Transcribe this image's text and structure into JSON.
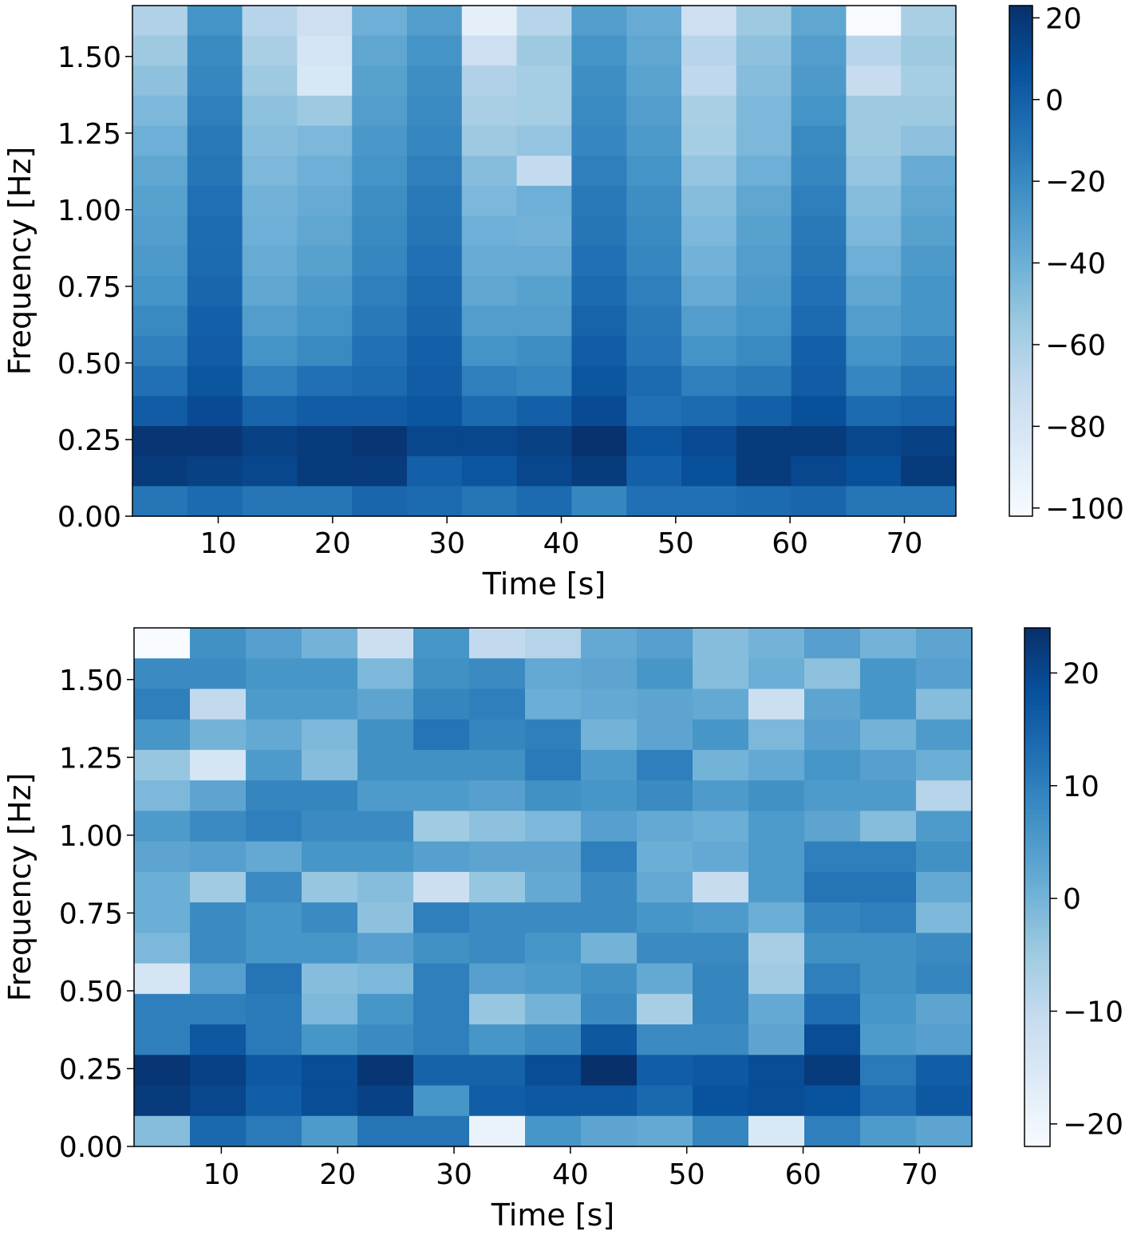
{
  "chart_data": [
    {
      "type": "heatmap",
      "xlabel": "Time [s]",
      "ylabel": "Frequency [Hz]",
      "x_ticks": [
        10,
        20,
        30,
        40,
        50,
        60,
        70
      ],
      "y_ticks": [
        0.0,
        0.25,
        0.5,
        0.75,
        1.0,
        1.25,
        1.5
      ],
      "y_tick_labels": [
        "0.00",
        "0.25",
        "0.50",
        "0.75",
        "1.00",
        "1.25",
        "1.50"
      ],
      "x_tick_labels": [
        "10",
        "20",
        "30",
        "40",
        "50",
        "60",
        "70"
      ],
      "xlim": [
        2.5,
        74.5
      ],
      "ylim": [
        0.0,
        1.666
      ],
      "x_edges": [
        2.5,
        7.3,
        12.1,
        16.9,
        21.7,
        26.5,
        31.3,
        36.1,
        40.9,
        45.7,
        50.5,
        55.3,
        60.1,
        64.9,
        69.7,
        74.5
      ],
      "y_edges": [
        0.0,
        0.098,
        0.196,
        0.294,
        0.392,
        0.49,
        0.588,
        0.686,
        0.784,
        0.882,
        0.98,
        1.078,
        1.176,
        1.274,
        1.372,
        1.47,
        1.568,
        1.666
      ],
      "colormap": "Blues",
      "colorbar": {
        "min": -102,
        "max": 23,
        "ticks": [
          20,
          0,
          -20,
          -40,
          -60,
          -80,
          -100
        ],
        "tick_labels": [
          "20",
          "0",
          "−20",
          "−40",
          "−60",
          "−80",
          "−100"
        ]
      },
      "values_rows_top_to_bottom": [
        [
          -62,
          -25,
          -65,
          -75,
          -40,
          -30,
          -90,
          -65,
          -30,
          -38,
          -75,
          -55,
          -35,
          -102,
          -60
        ],
        [
          -55,
          -20,
          -60,
          -80,
          -35,
          -25,
          -75,
          -55,
          -25,
          -35,
          -65,
          -50,
          -30,
          -65,
          -55
        ],
        [
          -50,
          -18,
          -55,
          -82,
          -32,
          -22,
          -62,
          -58,
          -22,
          -33,
          -68,
          -48,
          -28,
          -72,
          -58
        ],
        [
          -45,
          -15,
          -50,
          -55,
          -30,
          -20,
          -60,
          -58,
          -20,
          -30,
          -60,
          -45,
          -25,
          -55,
          -55
        ],
        [
          -40,
          -12,
          -48,
          -45,
          -27,
          -18,
          -55,
          -52,
          -18,
          -28,
          -58,
          -45,
          -20,
          -55,
          -50
        ],
        [
          -35,
          -10,
          -45,
          -40,
          -25,
          -15,
          -48,
          -70,
          -15,
          -25,
          -52,
          -40,
          -18,
          -52,
          -38
        ],
        [
          -32,
          -8,
          -42,
          -38,
          -22,
          -12,
          -45,
          -40,
          -12,
          -22,
          -48,
          -35,
          -15,
          -48,
          -35
        ],
        [
          -30,
          -6,
          -40,
          -35,
          -20,
          -10,
          -40,
          -42,
          -10,
          -20,
          -45,
          -32,
          -12,
          -45,
          -32
        ],
        [
          -28,
          -5,
          -38,
          -32,
          -18,
          -8,
          -38,
          -38,
          -8,
          -18,
          -42,
          -30,
          -10,
          -40,
          -28
        ],
        [
          -25,
          -3,
          -35,
          -28,
          -15,
          -5,
          -35,
          -32,
          -5,
          -15,
          -38,
          -28,
          -8,
          -35,
          -25
        ],
        [
          -20,
          0,
          -30,
          -25,
          -12,
          -3,
          -30,
          -30,
          -2,
          -12,
          -30,
          -25,
          -5,
          -30,
          -25
        ],
        [
          -15,
          2,
          -25,
          -20,
          -8,
          0,
          -25,
          -22,
          2,
          -10,
          -25,
          -20,
          0,
          -25,
          -18
        ],
        [
          -8,
          5,
          -15,
          -8,
          -5,
          2,
          -15,
          -18,
          5,
          -5,
          -15,
          -12,
          2,
          -18,
          -10
        ],
        [
          2,
          10,
          -2,
          2,
          2,
          5,
          -5,
          0,
          10,
          -8,
          -5,
          0,
          8,
          -5,
          -2
        ],
        [
          20,
          20,
          15,
          18,
          20,
          12,
          12,
          15,
          22,
          5,
          10,
          18,
          18,
          12,
          15
        ],
        [
          18,
          15,
          12,
          18,
          18,
          0,
          5,
          12,
          18,
          0,
          8,
          18,
          12,
          8,
          18
        ],
        [
          -10,
          -5,
          -10,
          -10,
          -3,
          -5,
          -10,
          -5,
          -18,
          -8,
          -8,
          -5,
          -3,
          -10,
          -10
        ]
      ]
    },
    {
      "type": "heatmap",
      "xlabel": "Time [s]",
      "ylabel": "Frequency [Hz]",
      "x_ticks": [
        10,
        20,
        30,
        40,
        50,
        60,
        70
      ],
      "y_ticks": [
        0.0,
        0.25,
        0.5,
        0.75,
        1.0,
        1.25,
        1.5
      ],
      "y_tick_labels": [
        "0.00",
        "0.25",
        "0.50",
        "0.75",
        "1.00",
        "1.25",
        "1.50"
      ],
      "x_tick_labels": [
        "10",
        "20",
        "30",
        "40",
        "50",
        "60",
        "70"
      ],
      "xlim": [
        2.5,
        74.5
      ],
      "ylim": [
        0.0,
        1.666
      ],
      "x_edges": [
        2.5,
        7.3,
        12.1,
        16.9,
        21.7,
        26.5,
        31.3,
        36.1,
        40.9,
        45.7,
        50.5,
        55.3,
        60.1,
        64.9,
        69.7,
        74.5
      ],
      "y_edges": [
        0.0,
        0.098,
        0.196,
        0.294,
        0.392,
        0.49,
        0.588,
        0.686,
        0.784,
        0.882,
        0.98,
        1.078,
        1.176,
        1.274,
        1.372,
        1.47,
        1.568,
        1.666
      ],
      "colormap": "Blues",
      "colorbar": {
        "min": -22,
        "max": 24,
        "ticks": [
          20,
          10,
          0,
          -10,
          -20
        ],
        "tick_labels": [
          "20",
          "10",
          "0",
          "−10",
          "−20"
        ]
      },
      "values_rows_top_to_bottom": [
        [
          -22,
          7,
          4,
          0,
          -12,
          6,
          -10,
          -8,
          2,
          4,
          -2,
          0,
          4,
          0,
          3
        ],
        [
          8,
          8,
          6,
          6,
          -1,
          7,
          8,
          2,
          3,
          6,
          -2,
          1,
          -3,
          6,
          4
        ],
        [
          10,
          -10,
          5,
          5,
          3,
          9,
          10,
          1,
          2,
          3,
          2,
          -12,
          3,
          6,
          -2
        ],
        [
          6,
          0,
          2,
          -1,
          7,
          12,
          9,
          10,
          0,
          3,
          6,
          -1,
          4,
          0,
          5
        ],
        [
          -4,
          -14,
          5,
          -2,
          7,
          7,
          7,
          11,
          5,
          10,
          0,
          2,
          6,
          4,
          1
        ],
        [
          -1,
          3,
          9,
          9,
          5,
          5,
          4,
          7,
          6,
          8,
          5,
          7,
          5,
          5,
          -8
        ],
        [
          5,
          8,
          10,
          8,
          8,
          -5,
          -3,
          -1,
          4,
          2,
          1,
          5,
          3,
          -2,
          5
        ],
        [
          3,
          4,
          2,
          6,
          6,
          4,
          3,
          3,
          10,
          1,
          2,
          5,
          10,
          10,
          7
        ],
        [
          1,
          -5,
          8,
          -4,
          -2,
          -12,
          -4,
          2,
          8,
          2,
          -11,
          5,
          12,
          12,
          2
        ],
        [
          1,
          8,
          6,
          8,
          -3,
          10,
          8,
          8,
          8,
          6,
          5,
          1,
          9,
          10,
          -1
        ],
        [
          -1,
          8,
          6,
          6,
          4,
          7,
          8,
          6,
          0,
          8,
          8,
          -6,
          7,
          7,
          8
        ],
        [
          -14,
          4,
          12,
          -2,
          -1,
          10,
          4,
          5,
          7,
          2,
          9,
          -5,
          10,
          7,
          9
        ],
        [
          10,
          10,
          11,
          -1,
          6,
          10,
          -4,
          0,
          8,
          -6,
          9,
          2,
          13,
          6,
          3
        ],
        [
          10,
          17,
          11,
          6,
          8,
          10,
          6,
          8,
          17,
          8,
          8,
          3,
          19,
          5,
          4
        ],
        [
          23,
          21,
          17,
          19,
          23,
          15,
          15,
          19,
          24,
          16,
          17,
          19,
          22,
          11,
          16
        ],
        [
          22,
          20,
          16,
          19,
          21,
          6,
          16,
          17,
          17,
          14,
          18,
          19,
          18,
          13,
          17
        ],
        [
          -2,
          14,
          11,
          5,
          12,
          12,
          -19,
          6,
          3,
          2,
          9,
          -15,
          10,
          5,
          3
        ]
      ]
    }
  ]
}
